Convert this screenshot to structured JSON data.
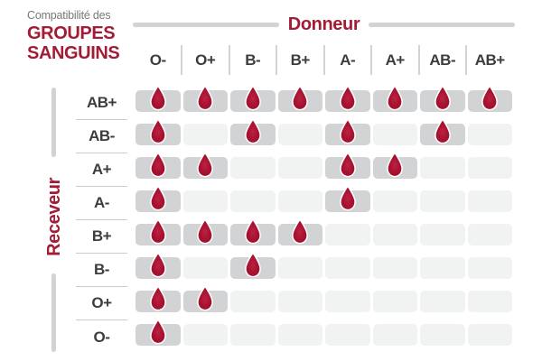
{
  "title": {
    "eyebrow": "Compatibilité des",
    "line1": "GROUPES",
    "line2": "SANGUINS"
  },
  "axes": {
    "donor": "Donneur",
    "recipient": "Receveur"
  },
  "icons": {
    "compatible_marker": "blood-drop-icon"
  },
  "colors": {
    "accent_red": "#A21C35",
    "drop_red_center": "#BC2144",
    "drop_red_edge": "#9C0F2E",
    "cell_filled": "#D1D3D4",
    "cell_empty": "#F1F2F2",
    "line_gray": "#D1D3D4",
    "muted_text": "#77787B",
    "label_ink": "#3D3D3F",
    "background": "#FFFFFF"
  },
  "chart_data": {
    "type": "heatmap",
    "title": "Compatibilité des GROUPES SANGUINS",
    "x_axis_label": "Donneur",
    "y_axis_label": "Receveur",
    "columns": [
      "O-",
      "O+",
      "B-",
      "B+",
      "A-",
      "A+",
      "AB-",
      "AB+"
    ],
    "rows": [
      "AB+",
      "AB-",
      "A+",
      "A-",
      "B+",
      "B-",
      "O+",
      "O-"
    ],
    "matrix": [
      [
        1,
        1,
        1,
        1,
        1,
        1,
        1,
        1
      ],
      [
        1,
        0,
        1,
        0,
        1,
        0,
        1,
        0
      ],
      [
        1,
        1,
        0,
        0,
        1,
        1,
        0,
        0
      ],
      [
        1,
        0,
        0,
        0,
        1,
        0,
        0,
        0
      ],
      [
        1,
        1,
        1,
        1,
        0,
        0,
        0,
        0
      ],
      [
        1,
        0,
        1,
        0,
        0,
        0,
        0,
        0
      ],
      [
        1,
        1,
        0,
        0,
        0,
        0,
        0,
        0
      ],
      [
        1,
        0,
        0,
        0,
        0,
        0,
        0,
        0
      ]
    ],
    "cell_marker": "blood-drop = compatible, empty = incompatible",
    "legend_position": "none",
    "grid": "off"
  }
}
